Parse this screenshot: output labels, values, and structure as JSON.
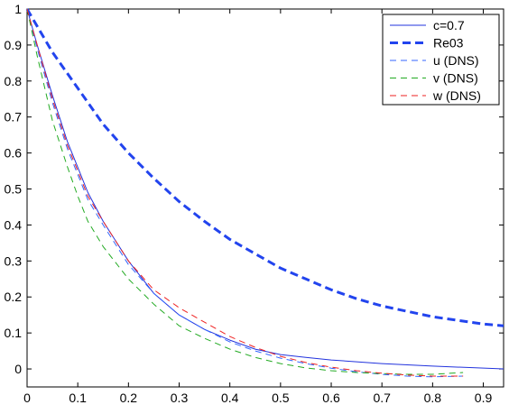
{
  "chart_data": {
    "type": "line",
    "title": "",
    "xlabel": "",
    "ylabel": "",
    "xlim": [
      0,
      0.94
    ],
    "ylim": [
      -0.05,
      1.0
    ],
    "xticks": [
      0,
      0.1,
      0.2,
      0.3,
      0.4,
      0.5,
      0.6,
      0.7,
      0.8,
      0.9
    ],
    "xtick_labels": [
      "0",
      "0.1",
      "0.2",
      "0.3",
      "0.4",
      "0.5",
      "0.6",
      "0.7",
      "0.8",
      "0.9"
    ],
    "yticks": [
      0,
      0.1,
      0.2,
      0.3,
      0.4,
      0.5,
      0.6,
      0.7,
      0.8,
      0.9,
      1
    ],
    "ytick_labels": [
      "0",
      "0.1",
      "0.2",
      "0.3",
      "0.4",
      "0.5",
      "0.6",
      "0.7",
      "0.8",
      "0.9",
      "1"
    ],
    "grid": false,
    "legend_position": "top-right",
    "series": [
      {
        "name": "c=0.7",
        "color": "#2233dd",
        "style": "solid",
        "x": [
          0,
          0.02,
          0.05,
          0.08,
          0.1,
          0.12,
          0.15,
          0.2,
          0.25,
          0.3,
          0.35,
          0.4,
          0.45,
          0.5,
          0.55,
          0.6,
          0.7,
          0.8,
          0.94
        ],
        "y": [
          1.0,
          0.9,
          0.76,
          0.63,
          0.56,
          0.49,
          0.41,
          0.3,
          0.21,
          0.15,
          0.11,
          0.08,
          0.055,
          0.04,
          0.032,
          0.025,
          0.015,
          0.008,
          0.0
        ]
      },
      {
        "name": "Re03",
        "color": "#2244ee",
        "style": "thick-dashed",
        "x": [
          0,
          0.05,
          0.1,
          0.15,
          0.2,
          0.25,
          0.3,
          0.35,
          0.4,
          0.45,
          0.5,
          0.55,
          0.6,
          0.65,
          0.7,
          0.75,
          0.8,
          0.85,
          0.9,
          0.94
        ],
        "y": [
          1.0,
          0.88,
          0.78,
          0.68,
          0.6,
          0.53,
          0.465,
          0.41,
          0.36,
          0.32,
          0.28,
          0.25,
          0.22,
          0.195,
          0.175,
          0.16,
          0.145,
          0.135,
          0.125,
          0.12
        ]
      },
      {
        "name": "u (DNS)",
        "color": "#3366ff",
        "style": "dashed",
        "x": [
          0,
          0.02,
          0.05,
          0.08,
          0.1,
          0.12,
          0.15,
          0.2,
          0.25,
          0.3,
          0.35,
          0.4,
          0.45,
          0.5,
          0.55,
          0.6,
          0.65,
          0.7,
          0.75,
          0.8,
          0.86
        ],
        "y": [
          1.0,
          0.89,
          0.74,
          0.61,
          0.54,
          0.47,
          0.4,
          0.29,
          0.21,
          0.15,
          0.11,
          0.075,
          0.05,
          0.03,
          0.015,
          0.002,
          -0.008,
          -0.015,
          -0.02,
          -0.022,
          -0.02
        ]
      },
      {
        "name": "v (DNS)",
        "color": "#22aa22",
        "style": "dashed",
        "x": [
          0,
          0.02,
          0.05,
          0.08,
          0.1,
          0.12,
          0.15,
          0.2,
          0.25,
          0.3,
          0.35,
          0.4,
          0.45,
          0.5,
          0.55,
          0.6,
          0.65,
          0.7,
          0.75,
          0.8,
          0.86
        ],
        "y": [
          1.0,
          0.87,
          0.69,
          0.56,
          0.48,
          0.41,
          0.34,
          0.25,
          0.18,
          0.12,
          0.085,
          0.055,
          0.032,
          0.015,
          0.003,
          -0.005,
          -0.01,
          -0.013,
          -0.015,
          -0.015,
          -0.01
        ]
      },
      {
        "name": "w (DNS)",
        "color": "#ee2222",
        "style": "dashed",
        "x": [
          0,
          0.02,
          0.05,
          0.08,
          0.1,
          0.12,
          0.15,
          0.2,
          0.25,
          0.3,
          0.35,
          0.4,
          0.45,
          0.5,
          0.55,
          0.6,
          0.65,
          0.7,
          0.75,
          0.8,
          0.86
        ],
        "y": [
          1.0,
          0.9,
          0.75,
          0.62,
          0.55,
          0.48,
          0.41,
          0.3,
          0.22,
          0.17,
          0.13,
          0.09,
          0.06,
          0.035,
          0.018,
          0.005,
          -0.005,
          -0.012,
          -0.017,
          -0.02,
          -0.02
        ]
      }
    ]
  }
}
